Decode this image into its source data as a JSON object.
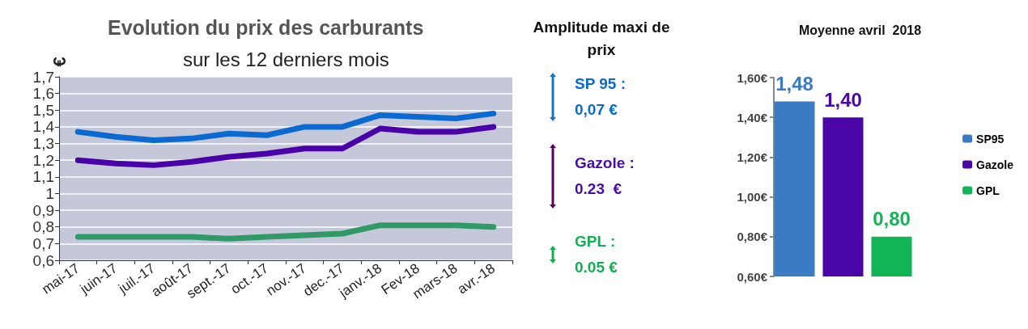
{
  "chart_data": [
    {
      "type": "line",
      "title": "Evolution du prix des carburants",
      "subtitle": "sur les 12 derniers mois",
      "ylabel": "€",
      "categories": [
        "mai-17",
        "juin-17",
        "juil.-17",
        "août-17",
        "sept.-17",
        "oct.-17",
        "nov.-17",
        "dec.-17",
        "janv.-18",
        "Fev-18",
        "mars-18",
        "avr.-18"
      ],
      "series": [
        {
          "color": "#0a6ad2",
          "values": [
            1.37,
            1.34,
            1.32,
            1.33,
            1.36,
            1.35,
            1.4,
            1.4,
            1.47,
            1.46,
            1.45,
            1.48
          ]
        },
        {
          "color": "#4a00a8",
          "values": [
            1.2,
            1.18,
            1.17,
            1.19,
            1.22,
            1.24,
            1.27,
            1.27,
            1.39,
            1.37,
            1.37,
            1.4
          ]
        },
        {
          "color": "#2f9a66",
          "values": [
            0.74,
            0.74,
            0.74,
            0.74,
            0.73,
            0.74,
            0.75,
            0.76,
            0.81,
            0.81,
            0.81,
            0.8
          ]
        }
      ],
      "ylim": [
        0.6,
        1.7
      ],
      "yticks": [
        {
          "value": 0.6,
          "label": "0,6"
        },
        {
          "value": 0.7,
          "label": "0,7"
        },
        {
          "value": 0.8,
          "label": "0,8"
        },
        {
          "value": 0.9,
          "label": "0,9"
        },
        1,
        {
          "value": 1.1,
          "label": "1,1"
        },
        {
          "value": 1.2,
          "label": "1,2"
        },
        {
          "value": 1.3,
          "label": "1,3"
        },
        {
          "value": 1.4,
          "label": "1,4"
        },
        {
          "value": 1.5,
          "label": "1,5"
        },
        {
          "value": 1.6,
          "label": "1,6"
        },
        {
          "value": 1.7,
          "label": "1,7"
        }
      ],
      "grid": "y",
      "legend": false,
      "marker": "none"
    },
    {
      "type": "other",
      "title": "Amplitude maxi de prix",
      "annotations": [
        "SP 95 :",
        "0,07 €",
        "Gazole :",
        "0.23  €",
        "GPL :",
        "0.05 €"
      ]
    },
    {
      "type": "bar",
      "title": "Moyenne avril  2018",
      "categories": [
        null
      ],
      "series": [
        {
          "name": "SP95",
          "color": "#3b7bc6",
          "values": [
            1.48
          ],
          "value_labels": [
            "1,48"
          ]
        },
        {
          "name": "Gazole",
          "color": "#4a06a6",
          "values": [
            1.4
          ],
          "value_labels": [
            "1,40"
          ]
        },
        {
          "name": "GPL",
          "color": "#12b556",
          "values": [
            0.8
          ],
          "value_labels": [
            "0,80"
          ]
        }
      ],
      "ylim": [
        0.6,
        1.6
      ],
      "yticks": [
        {
          "value": 0.6,
          "label": "0,60€"
        },
        {
          "value": 0.8,
          "label": "0,80€"
        },
        {
          "value": 1.0,
          "label": "1,00€"
        },
        {
          "value": 1.2,
          "label": "1,20€"
        },
        {
          "value": 1.4,
          "label": "1,40€"
        },
        {
          "value": 1.6,
          "label": "1,60€"
        }
      ],
      "grid": false,
      "legend": "right"
    }
  ]
}
